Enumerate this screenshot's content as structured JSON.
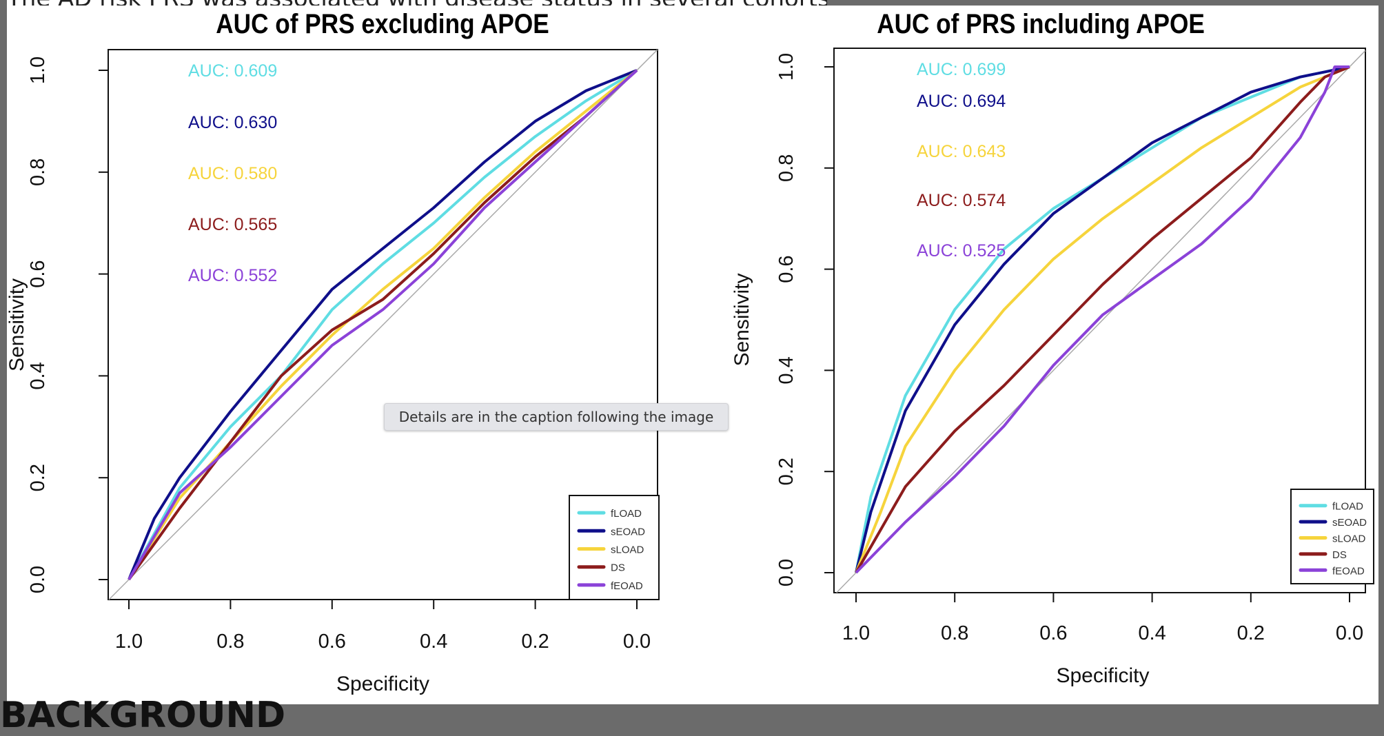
{
  "page": {
    "background_text_top": "The AD risk PRS was associated with disease status in several cohorts of sporadic late-",
    "background_text_bottom": "BACKGROUND",
    "tooltip": "Details are in the caption following the image"
  },
  "colors": {
    "fLOAD": "#5fdde3",
    "sEOAD": "#0f0f8a",
    "sLOAD": "#f6d43c",
    "DS": "#8c1c1c",
    "fEOAD": "#8b42d8"
  },
  "chart_data": [
    {
      "type": "line",
      "title": "AUC of PRS excluding APOE",
      "xlabel": "Specificity",
      "ylabel": "Sensitivity",
      "xlim": [
        1.0,
        0.0
      ],
      "ylim": [
        0.0,
        1.0
      ],
      "xticks": [
        "1.0",
        "0.8",
        "0.6",
        "0.4",
        "0.2",
        "0.0"
      ],
      "yticks": [
        "0.0",
        "0.2",
        "0.4",
        "0.6",
        "0.8",
        "1.0"
      ],
      "legend_position": "bottom-right",
      "annotations": [
        "AUC: 0.609",
        "AUC: 0.630",
        "AUC: 0.580",
        "AUC: 0.565",
        "AUC: 0.552"
      ],
      "series": [
        {
          "name": "fLOAD",
          "auc": 0.609,
          "points": [
            [
              1,
              0
            ],
            [
              0.9,
              0.18
            ],
            [
              0.8,
              0.3
            ],
            [
              0.7,
              0.4
            ],
            [
              0.6,
              0.53
            ],
            [
              0.5,
              0.62
            ],
            [
              0.4,
              0.7
            ],
            [
              0.3,
              0.79
            ],
            [
              0.2,
              0.87
            ],
            [
              0.1,
              0.94
            ],
            [
              0,
              1
            ]
          ]
        },
        {
          "name": "sEOAD",
          "auc": 0.63,
          "points": [
            [
              1,
              0
            ],
            [
              0.95,
              0.12
            ],
            [
              0.9,
              0.2
            ],
            [
              0.8,
              0.33
            ],
            [
              0.7,
              0.45
            ],
            [
              0.6,
              0.57
            ],
            [
              0.5,
              0.65
            ],
            [
              0.4,
              0.73
            ],
            [
              0.3,
              0.82
            ],
            [
              0.2,
              0.9
            ],
            [
              0.1,
              0.96
            ],
            [
              0,
              1
            ]
          ]
        },
        {
          "name": "sLOAD",
          "auc": 0.58,
          "points": [
            [
              1,
              0
            ],
            [
              0.9,
              0.16
            ],
            [
              0.8,
              0.27
            ],
            [
              0.7,
              0.38
            ],
            [
              0.6,
              0.48
            ],
            [
              0.5,
              0.57
            ],
            [
              0.4,
              0.65
            ],
            [
              0.3,
              0.75
            ],
            [
              0.2,
              0.84
            ],
            [
              0.1,
              0.92
            ],
            [
              0,
              1
            ]
          ]
        },
        {
          "name": "DS",
          "auc": 0.565,
          "points": [
            [
              1,
              0
            ],
            [
              0.9,
              0.14
            ],
            [
              0.8,
              0.27
            ],
            [
              0.7,
              0.4
            ],
            [
              0.6,
              0.49
            ],
            [
              0.5,
              0.55
            ],
            [
              0.4,
              0.64
            ],
            [
              0.3,
              0.74
            ],
            [
              0.2,
              0.83
            ],
            [
              0.1,
              0.91
            ],
            [
              0,
              1
            ]
          ]
        },
        {
          "name": "fEOAD",
          "auc": 0.552,
          "points": [
            [
              1,
              0
            ],
            [
              0.9,
              0.17
            ],
            [
              0.8,
              0.26
            ],
            [
              0.7,
              0.36
            ],
            [
              0.6,
              0.46
            ],
            [
              0.5,
              0.53
            ],
            [
              0.4,
              0.62
            ],
            [
              0.3,
              0.73
            ],
            [
              0.2,
              0.82
            ],
            [
              0.1,
              0.91
            ],
            [
              0,
              1
            ]
          ]
        }
      ]
    },
    {
      "type": "line",
      "title": "AUC of PRS including APOE",
      "xlabel": "Specificity",
      "ylabel": "Sensitivity",
      "xlim": [
        1.0,
        0.0
      ],
      "ylim": [
        0.0,
        1.0
      ],
      "xticks": [
        "1.0",
        "0.8",
        "0.6",
        "0.4",
        "0.2",
        "0.0"
      ],
      "yticks": [
        "0.0",
        "0.2",
        "0.4",
        "0.6",
        "0.8",
        "1.0"
      ],
      "legend_position": "bottom-right",
      "annotations": [
        "AUC: 0.699",
        "AUC: 0.694",
        "AUC: 0.643",
        "AUC: 0.574",
        "AUC: 0.525"
      ],
      "series": [
        {
          "name": "fLOAD",
          "auc": 0.699,
          "points": [
            [
              1,
              0
            ],
            [
              0.97,
              0.15
            ],
            [
              0.9,
              0.35
            ],
            [
              0.8,
              0.52
            ],
            [
              0.7,
              0.64
            ],
            [
              0.6,
              0.72
            ],
            [
              0.5,
              0.78
            ],
            [
              0.4,
              0.84
            ],
            [
              0.3,
              0.9
            ],
            [
              0.2,
              0.94
            ],
            [
              0.1,
              0.98
            ],
            [
              0,
              1
            ]
          ]
        },
        {
          "name": "sEOAD",
          "auc": 0.694,
          "points": [
            [
              1,
              0
            ],
            [
              0.97,
              0.12
            ],
            [
              0.9,
              0.32
            ],
            [
              0.8,
              0.49
            ],
            [
              0.7,
              0.61
            ],
            [
              0.6,
              0.71
            ],
            [
              0.5,
              0.78
            ],
            [
              0.4,
              0.85
            ],
            [
              0.3,
              0.9
            ],
            [
              0.2,
              0.95
            ],
            [
              0.1,
              0.98
            ],
            [
              0,
              1
            ]
          ]
        },
        {
          "name": "sLOAD",
          "auc": 0.643,
          "points": [
            [
              1,
              0
            ],
            [
              0.95,
              0.12
            ],
            [
              0.9,
              0.25
            ],
            [
              0.8,
              0.4
            ],
            [
              0.7,
              0.52
            ],
            [
              0.6,
              0.62
            ],
            [
              0.5,
              0.7
            ],
            [
              0.4,
              0.77
            ],
            [
              0.3,
              0.84
            ],
            [
              0.2,
              0.9
            ],
            [
              0.1,
              0.96
            ],
            [
              0,
              1
            ]
          ]
        },
        {
          "name": "DS",
          "auc": 0.574,
          "points": [
            [
              1,
              0
            ],
            [
              0.9,
              0.17
            ],
            [
              0.8,
              0.28
            ],
            [
              0.7,
              0.37
            ],
            [
              0.6,
              0.47
            ],
            [
              0.5,
              0.57
            ],
            [
              0.4,
              0.66
            ],
            [
              0.3,
              0.74
            ],
            [
              0.2,
              0.82
            ],
            [
              0.1,
              0.93
            ],
            [
              0.05,
              0.98
            ],
            [
              0,
              1
            ]
          ]
        },
        {
          "name": "fEOAD",
          "auc": 0.525,
          "points": [
            [
              1,
              0
            ],
            [
              0.9,
              0.1
            ],
            [
              0.8,
              0.19
            ],
            [
              0.7,
              0.29
            ],
            [
              0.6,
              0.41
            ],
            [
              0.5,
              0.51
            ],
            [
              0.4,
              0.58
            ],
            [
              0.3,
              0.65
            ],
            [
              0.2,
              0.74
            ],
            [
              0.1,
              0.86
            ],
            [
              0.05,
              0.95
            ],
            [
              0.03,
              1
            ],
            [
              0,
              1
            ]
          ]
        }
      ]
    }
  ]
}
